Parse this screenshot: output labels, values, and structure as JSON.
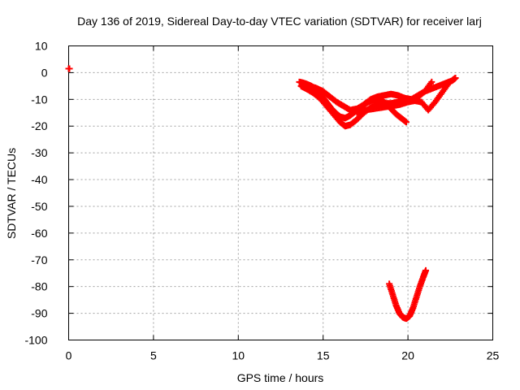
{
  "chart_data": {
    "type": "scatter",
    "title": "Day 136 of 2019, Sidereal Day-to-day VTEC variation (SDTVAR) for receiver larj",
    "xlabel": "GPS time / hours",
    "ylabel": "SDTVAR / TECUs",
    "xlim": [
      0,
      25
    ],
    "ylim": [
      -100,
      10
    ],
    "xticks": [
      0,
      5,
      10,
      15,
      20,
      25
    ],
    "yticks": [
      10,
      0,
      -10,
      -20,
      -30,
      -40,
      -50,
      -60,
      -70,
      -80,
      -90,
      -100
    ],
    "grid": true,
    "marker": "plus",
    "color": "#ff0000",
    "series": [
      {
        "name": "early-segment",
        "x": [
          0.0,
          0.05
        ],
        "y": [
          1.5,
          1.5
        ]
      },
      {
        "name": "upper-track-a",
        "x": [
          13.6,
          13.8,
          14.0,
          14.3,
          14.6,
          14.9,
          15.2,
          15.5,
          15.8,
          16.0,
          16.3,
          16.6,
          16.9,
          17.2,
          17.5,
          17.8,
          18.1,
          18.4,
          18.7,
          19.0,
          19.3,
          19.6,
          19.9
        ],
        "y": [
          -3.5,
          -3.8,
          -4.2,
          -5.0,
          -6.5,
          -8.5,
          -11.0,
          -13.5,
          -15.5,
          -16.5,
          -17.0,
          -16.0,
          -14.5,
          -13.0,
          -11.5,
          -10.5,
          -10.0,
          -10.3,
          -11.5,
          -13.5,
          -15.5,
          -17.0,
          -18.5
        ]
      },
      {
        "name": "upper-track-b",
        "x": [
          13.7,
          14.0,
          14.4,
          14.8,
          15.2,
          15.6,
          16.0,
          16.3,
          16.6,
          17.0,
          17.4,
          17.8,
          18.2,
          18.6,
          19.0,
          19.4,
          19.8,
          20.2,
          20.6,
          21.0,
          21.4
        ],
        "y": [
          -5.0,
          -6.0,
          -7.5,
          -9.5,
          -12.5,
          -15.5,
          -18.5,
          -20.0,
          -19.5,
          -17.5,
          -15.0,
          -13.0,
          -12.0,
          -11.5,
          -11.5,
          -11.0,
          -10.5,
          -10.0,
          -9.0,
          -7.0,
          -3.5
        ]
      },
      {
        "name": "upper-track-c",
        "x": [
          13.8,
          14.2,
          14.6,
          15.0,
          15.4,
          15.8,
          16.2,
          16.6,
          17.0,
          17.4,
          17.8,
          18.2,
          18.6,
          19.0,
          19.4,
          19.8,
          20.2,
          20.6,
          21.0,
          21.4,
          21.8,
          22.2,
          22.6,
          22.8
        ],
        "y": [
          -4.0,
          -5.0,
          -5.8,
          -7.0,
          -9.0,
          -11.0,
          -12.5,
          -14.0,
          -13.5,
          -12.0,
          -10.0,
          -9.0,
          -8.5,
          -8.0,
          -8.5,
          -9.5,
          -10.0,
          -8.5,
          -7.0,
          -6.0,
          -5.0,
          -4.0,
          -3.0,
          -2.0
        ]
      },
      {
        "name": "upper-track-d",
        "x": [
          17.0,
          17.5,
          18.0,
          18.5,
          19.0,
          19.5,
          20.0,
          20.4,
          20.8,
          21.2,
          21.6,
          22.0,
          22.4
        ],
        "y": [
          -15.0,
          -14.0,
          -13.5,
          -13.0,
          -12.5,
          -12.0,
          -11.0,
          -10.5,
          -11.0,
          -14.0,
          -11.0,
          -7.5,
          -4.0
        ]
      },
      {
        "name": "lower-dip",
        "x": [
          18.9,
          19.1,
          19.3,
          19.5,
          19.7,
          19.9,
          20.1,
          20.3,
          20.5,
          20.7,
          20.9,
          21.05
        ],
        "y": [
          -79.0,
          -83.0,
          -87.0,
          -90.0,
          -91.5,
          -92.0,
          -91.0,
          -88.0,
          -84.0,
          -80.0,
          -76.5,
          -74.0
        ]
      }
    ]
  }
}
